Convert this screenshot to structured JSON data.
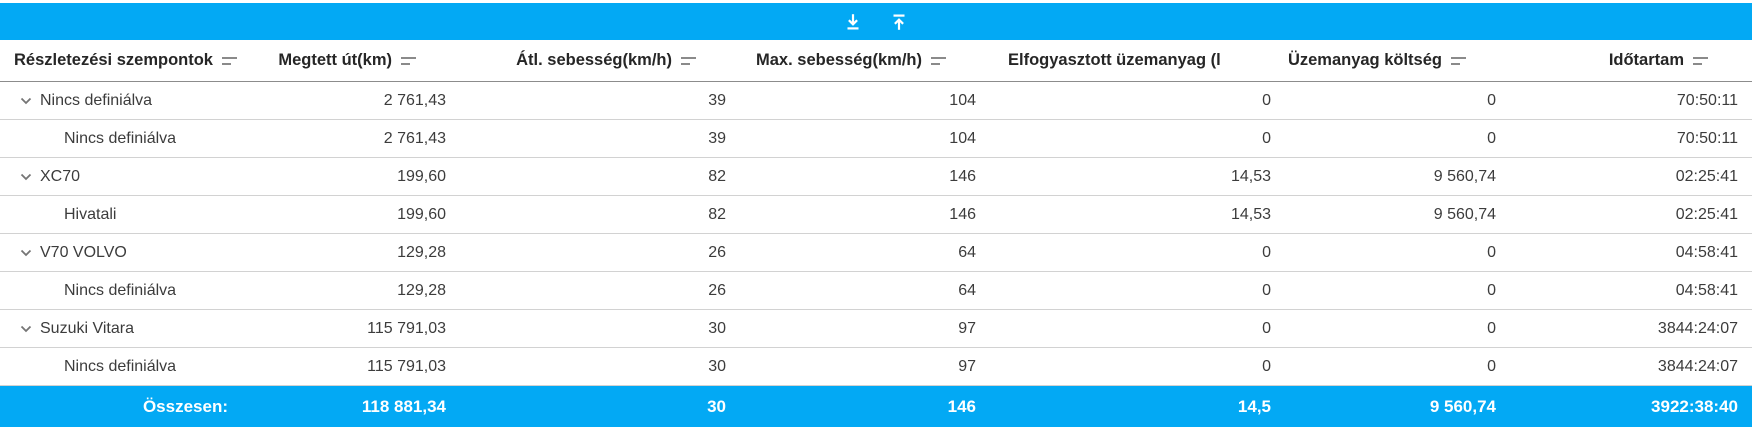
{
  "colors": {
    "accent": "#03a9f4",
    "header_text": "#262626",
    "body_text": "#3c3c3c",
    "total_text": "#ffffff"
  },
  "toolbar": {
    "icons": [
      {
        "name": "download-icon"
      },
      {
        "name": "upload-icon"
      }
    ]
  },
  "table": {
    "columns": [
      {
        "label": "Részletezési szempontok",
        "sort_icon": true
      },
      {
        "label": "Megtett út(km)",
        "sort_icon": true
      },
      {
        "label": "Átl. sebesség(km/h)",
        "sort_icon": true
      },
      {
        "label": "Max. sebesség(km/h)",
        "sort_icon": true
      },
      {
        "label": "Elfogyasztott üzemanyag (l",
        "sort_icon": false
      },
      {
        "label": "Üzemanyag költség",
        "sort_icon": true
      },
      {
        "label": "Időtartam",
        "sort_icon": true
      }
    ],
    "rows": [
      {
        "level": 0,
        "expanded": true,
        "name": "Nincs definiálva",
        "values": [
          "2 761,43",
          "39",
          "104",
          "0",
          "0",
          "70:50:11"
        ]
      },
      {
        "level": 1,
        "expanded": false,
        "name": "Nincs definiálva",
        "values": [
          "2 761,43",
          "39",
          "104",
          "0",
          "0",
          "70:50:11"
        ]
      },
      {
        "level": 0,
        "expanded": true,
        "name": "XC70",
        "values": [
          "199,60",
          "82",
          "146",
          "14,53",
          "9 560,74",
          "02:25:41"
        ]
      },
      {
        "level": 1,
        "expanded": false,
        "name": "Hivatali",
        "values": [
          "199,60",
          "82",
          "146",
          "14,53",
          "9 560,74",
          "02:25:41"
        ]
      },
      {
        "level": 0,
        "expanded": true,
        "name": "V70 VOLVO",
        "values": [
          "129,28",
          "26",
          "64",
          "0",
          "0",
          "04:58:41"
        ]
      },
      {
        "level": 1,
        "expanded": false,
        "name": "Nincs definiálva",
        "values": [
          "129,28",
          "26",
          "64",
          "0",
          "0",
          "04:58:41"
        ]
      },
      {
        "level": 0,
        "expanded": true,
        "name": "Suzuki Vitara",
        "values": [
          "115 791,03",
          "30",
          "97",
          "0",
          "0",
          "3844:24:07"
        ]
      },
      {
        "level": 1,
        "expanded": false,
        "name": "Nincs definiálva",
        "values": [
          "115 791,03",
          "30",
          "97",
          "0",
          "0",
          "3844:24:07"
        ]
      }
    ],
    "total": {
      "label": "Összesen:",
      "values": [
        "118 881,34",
        "30",
        "146",
        "14,5",
        "9 560,74",
        "3922:38:40"
      ]
    }
  }
}
